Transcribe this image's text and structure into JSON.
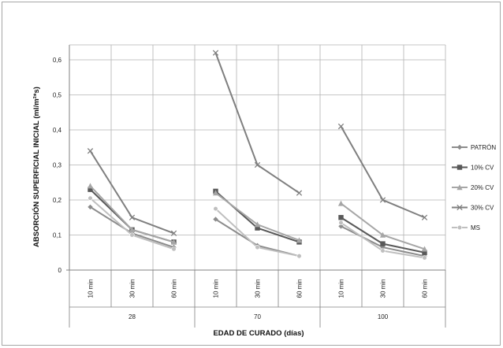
{
  "chart_data": {
    "type": "line",
    "ylabel": "ABSORCIÓN SUPERFICIAL INICIAL (ml/m²*s)",
    "xlabel": "EDAD DE CURADO (días)",
    "ylim": [
      0,
      0.6
    ],
    "yticks": [
      "0",
      "0,1",
      "0,2",
      "0,3",
      "0,4",
      "0,5",
      "0,6"
    ],
    "grid": true,
    "legend_position": "right",
    "groups": [
      {
        "label": "28",
        "categories": [
          "10 min",
          "30 min",
          "60 min"
        ]
      },
      {
        "label": "70",
        "categories": [
          "10 min",
          "30 min",
          "60 min"
        ]
      },
      {
        "label": "100",
        "categories": [
          "10 min",
          "30 min",
          "60 min"
        ]
      }
    ],
    "series": [
      {
        "name": "PATRÓN",
        "marker": "diamond",
        "color": "#8c8c8c",
        "values": [
          [
            0.18,
            0.105,
            0.065
          ],
          [
            0.145,
            0.07,
            0.04
          ],
          [
            0.125,
            0.065,
            0.04
          ]
        ]
      },
      {
        "name": "10% CV",
        "marker": "square",
        "color": "#595959",
        "values": [
          [
            0.23,
            0.115,
            0.08
          ],
          [
            0.225,
            0.12,
            0.08
          ],
          [
            0.15,
            0.075,
            0.05
          ]
        ]
      },
      {
        "name": "20% CV",
        "marker": "triangle",
        "color": "#a6a6a6",
        "values": [
          [
            0.24,
            0.115,
            0.08
          ],
          [
            0.22,
            0.13,
            0.085
          ],
          [
            0.19,
            0.1,
            0.06
          ]
        ]
      },
      {
        "name": "30% CV",
        "marker": "x",
        "color": "#7f7f7f",
        "values": [
          [
            0.34,
            0.15,
            0.105
          ],
          [
            0.62,
            0.3,
            0.22
          ],
          [
            0.41,
            0.2,
            0.15
          ]
        ]
      },
      {
        "name": "MS",
        "marker": "circle",
        "color": "#bfbfbf",
        "values": [
          [
            0.205,
            0.1,
            0.06
          ],
          [
            0.175,
            0.065,
            0.04
          ],
          [
            0.135,
            0.055,
            0.035
          ]
        ]
      }
    ]
  }
}
